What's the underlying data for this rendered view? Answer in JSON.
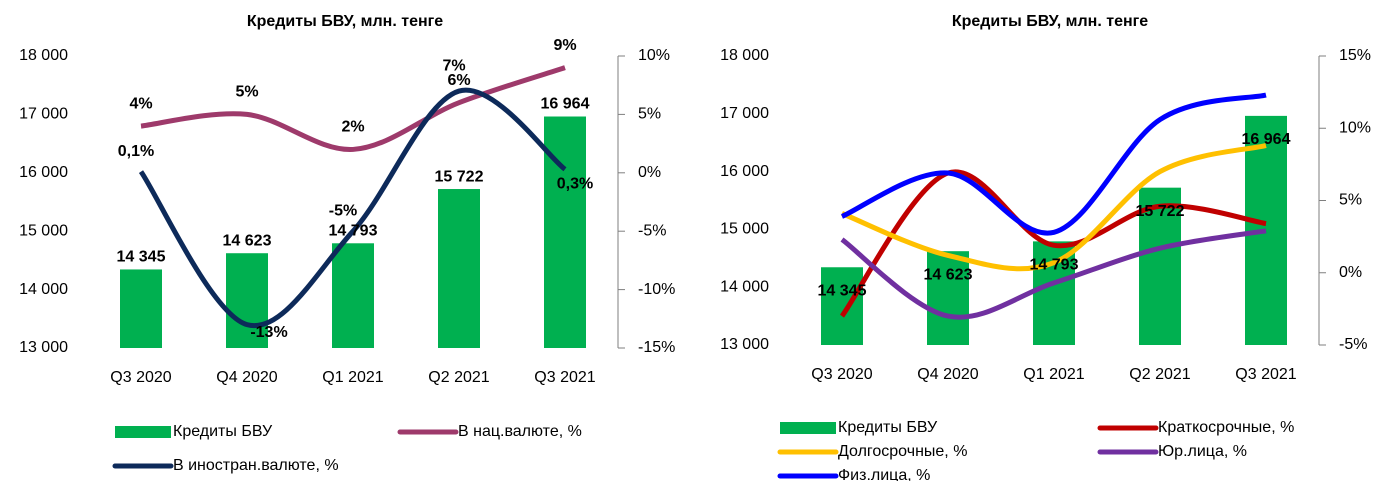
{
  "chart_data": [
    {
      "type": "bar",
      "title": "Кредиты БВУ, млн. тенге",
      "categories": [
        "Q3 2020",
        "Q4 2020",
        "Q1 2021",
        "Q2 2021",
        "Q3 2021"
      ],
      "series": [
        {
          "name": "Кредиты БВУ",
          "color": "#00b050",
          "values": [
            14345,
            14623,
            14793,
            15722,
            16964
          ],
          "value_labels": [
            "14 345",
            "14 623",
            "14 793",
            "15 722",
            "16 964"
          ]
        },
        {
          "name": "В нац.валюте, %",
          "color": "#9e3a6b",
          "axis": "y2",
          "values": [
            4,
            5,
            2,
            6,
            9
          ],
          "value_labels": [
            "4%",
            "5%",
            "2%",
            "6%",
            "9%"
          ]
        },
        {
          "name": "В иностран.валюте, %",
          "color": "#0d2a5a",
          "axis": "y2",
          "values": [
            0.1,
            -13,
            -5,
            7,
            0.3
          ],
          "value_labels": [
            "0,1%",
            "-13%",
            "-5%",
            "7%",
            "0,3%"
          ]
        }
      ],
      "ylim": [
        13000,
        18000
      ],
      "yticks": [
        {
          "value": 13000,
          "label": "13 000"
        },
        {
          "value": 14000,
          "label": "14 000"
        },
        {
          "value": 15000,
          "label": "15 000"
        },
        {
          "value": 16000,
          "label": "16 000"
        },
        {
          "value": 17000,
          "label": "17 000"
        },
        {
          "value": 18000,
          "label": "18 000"
        }
      ],
      "y2lim": [
        -15,
        10
      ],
      "y2ticks": [
        {
          "value": -15,
          "label": "-15%"
        },
        {
          "value": -10,
          "label": "-10%"
        },
        {
          "value": -5,
          "label": "-5%"
        },
        {
          "value": 0,
          "label": "0%"
        },
        {
          "value": 5,
          "label": "5%"
        },
        {
          "value": 10,
          "label": "10%"
        }
      ]
    },
    {
      "type": "bar",
      "title": "Кредиты БВУ, млн. тенге",
      "categories": [
        "Q3 2020",
        "Q4 2020",
        "Q1 2021",
        "Q2 2021",
        "Q3 2021"
      ],
      "series": [
        {
          "name": "Кредиты БВУ",
          "color": "#00b050",
          "values": [
            14345,
            14623,
            14793,
            15722,
            16964
          ],
          "value_labels": [
            "14 345",
            "14 623",
            "14 793",
            "15 722",
            "16 964"
          ]
        },
        {
          "name": "Краткосрочные, %",
          "color": "#c00000",
          "axis": "y2",
          "values": [
            -3.0,
            6.9,
            1.9,
            4.6,
            3.4
          ]
        },
        {
          "name": "Долгосрочные, %",
          "color": "#ffc000",
          "axis": "y2",
          "values": [
            4.1,
            1.2,
            0.7,
            7.0,
            8.8
          ]
        },
        {
          "name": "Юр.лица, %",
          "color": "#7030a0",
          "axis": "y2",
          "values": [
            2.3,
            -3.0,
            -0.7,
            1.7,
            2.9
          ]
        },
        {
          "name": "Физ.лица, %",
          "color": "#0000ff",
          "axis": "y2",
          "values": [
            3.9,
            6.9,
            2.8,
            10.6,
            12.3
          ]
        }
      ],
      "ylim": [
        13000,
        18000
      ],
      "yticks": [
        {
          "value": 13000,
          "label": "13 000"
        },
        {
          "value": 14000,
          "label": "14 000"
        },
        {
          "value": 15000,
          "label": "15 000"
        },
        {
          "value": 16000,
          "label": "16 000"
        },
        {
          "value": 17000,
          "label": "17 000"
        },
        {
          "value": 18000,
          "label": "18 000"
        }
      ],
      "y2lim": [
        -5,
        15
      ],
      "y2ticks": [
        {
          "value": -5,
          "label": "-5%"
        },
        {
          "value": 0,
          "label": "0%"
        },
        {
          "value": 5,
          "label": "5%"
        },
        {
          "value": 10,
          "label": "10%"
        },
        {
          "value": 15,
          "label": "15%"
        }
      ]
    }
  ]
}
